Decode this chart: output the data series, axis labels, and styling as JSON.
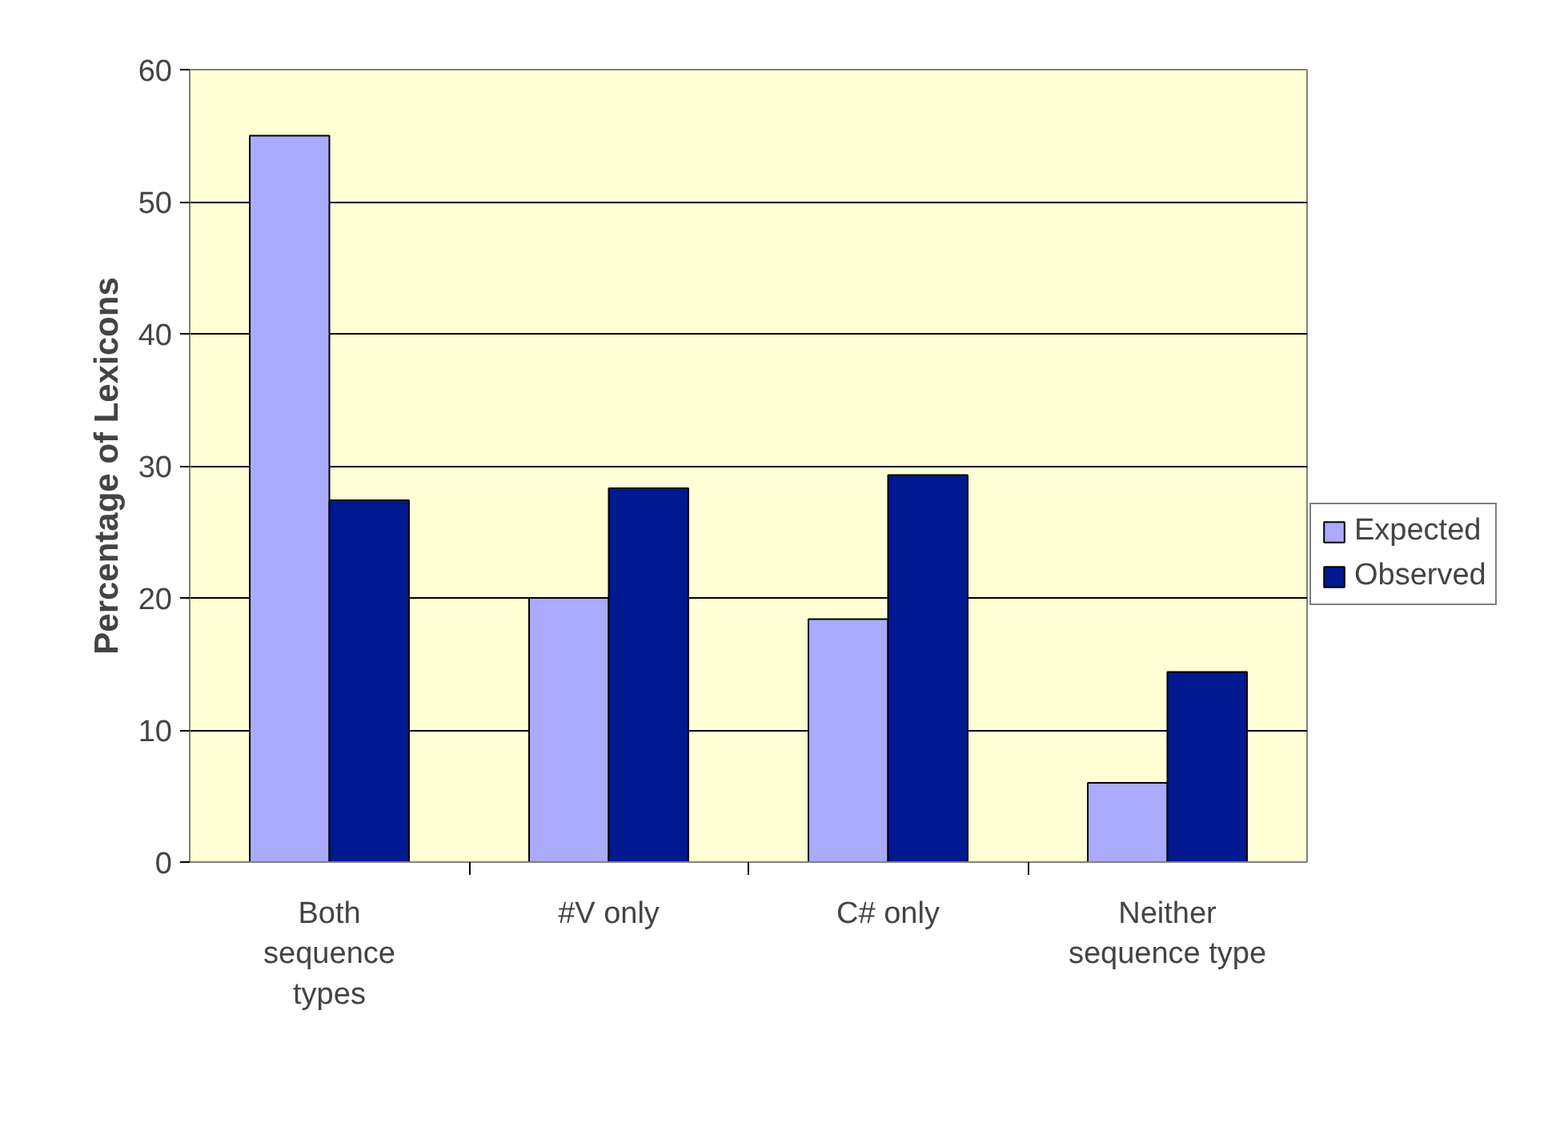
{
  "chart_data": {
    "type": "bar",
    "ylabel": "Percentage of Lexicons",
    "categories": [
      "Both\nsequence\ntypes",
      "#V only",
      "C# only",
      "Neither\nsequence type"
    ],
    "series": [
      {
        "name": "Expected",
        "color": "#aaaaff",
        "values": [
          55,
          20,
          18.4,
          6
        ]
      },
      {
        "name": "Observed",
        "color": "#001890",
        "values": [
          27.4,
          28.3,
          29.3,
          14.4
        ]
      }
    ],
    "ylim": [
      0,
      60
    ],
    "yticks": [
      0,
      10,
      20,
      30,
      40,
      50,
      60
    ],
    "grid": "y",
    "legend": "right"
  }
}
